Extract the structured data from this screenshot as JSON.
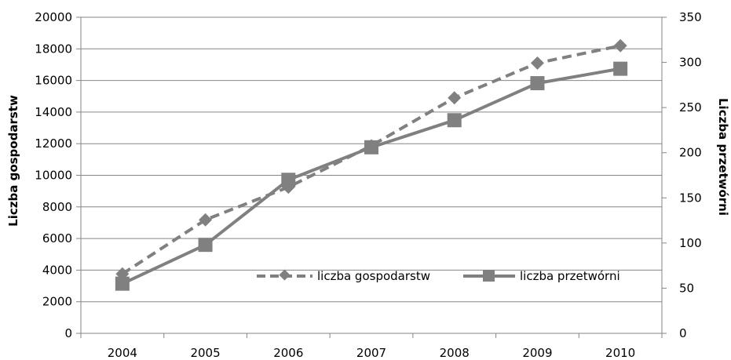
{
  "chart_data": {
    "type": "line",
    "x": [
      "2004",
      "2005",
      "2006",
      "2007",
      "2008",
      "2009",
      "2010"
    ],
    "ylabel_left": "Liczba gospodarstw",
    "ylabel_right": "Liczba przetwórni",
    "ylim_left": [
      0,
      20000
    ],
    "ylim_right": [
      0,
      350
    ],
    "yticks_left": [
      "0",
      "2000",
      "4000",
      "6000",
      "8000",
      "10000",
      "12000",
      "14000",
      "16000",
      "18000",
      "20000"
    ],
    "yticks_right": [
      "0",
      "50",
      "100",
      "150",
      "200",
      "250",
      "300",
      "350"
    ],
    "grid": true,
    "legend_position": "inside-bottom-right",
    "series": [
      {
        "name": "liczba gospodarstw",
        "axis": "left",
        "style": "dashed",
        "marker": "diamond",
        "values": [
          3760,
          7180,
          9250,
          11870,
          14900,
          17100,
          18200
        ]
      },
      {
        "name": "liczba przetwórni",
        "axis": "right",
        "style": "solid",
        "marker": "square",
        "values": [
          55,
          98,
          170,
          206,
          236,
          277,
          293
        ]
      }
    ],
    "colors": {
      "series": "#808080",
      "grid": "#868686",
      "axis": "#868686"
    }
  }
}
